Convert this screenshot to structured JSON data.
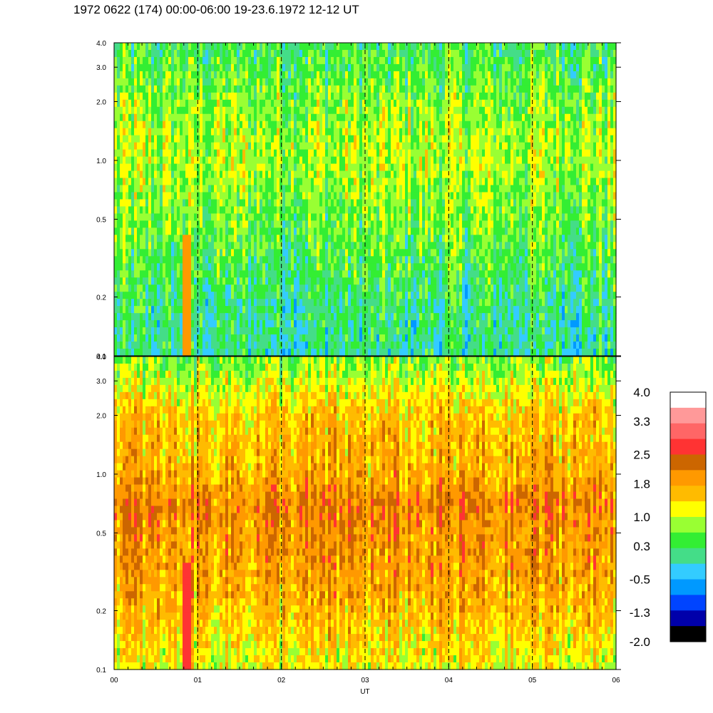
{
  "title": "1972 0622 (174) 00:00-06:00 19-23.6.1972  12-12 UT",
  "chart_data": [
    {
      "type": "heatmap",
      "panel": "top",
      "y_scale": "log",
      "ylim": [
        0.1,
        4.0
      ],
      "y_ticks": [
        "0.1",
        "0.2",
        "0.5",
        "1.0",
        "2.0",
        "3.0",
        "4.0"
      ],
      "y_tick_values": [
        0.1,
        0.2,
        0.5,
        1.0,
        2.0,
        3.0,
        4.0
      ],
      "xlim": [
        0,
        6
      ],
      "dashed_hour_lines": [
        1,
        2,
        3,
        4,
        5
      ],
      "dominant_levels": "0.3 to 1.0 (green–yellow), higher near 0.8–1.0 and 0.3–0.5",
      "profile": [
        {
          "y": 0.1,
          "level": 0.0
        },
        {
          "y": 0.2,
          "level": 0.2
        },
        {
          "y": 0.3,
          "level": 0.4
        },
        {
          "y": 0.5,
          "level": 0.6
        },
        {
          "y": 1.0,
          "level": 0.9
        },
        {
          "y": 2.0,
          "level": 0.7
        },
        {
          "y": 4.0,
          "level": 0.3
        }
      ],
      "events": [
        {
          "x": 0.88,
          "y_from": 0.1,
          "y_to": 0.4,
          "level": 2.0
        }
      ]
    },
    {
      "type": "heatmap",
      "panel": "bottom",
      "y_scale": "log",
      "ylim": [
        0.1,
        4.0
      ],
      "y_ticks": [
        "0.1",
        "0.2",
        "0.5",
        "1.0",
        "2.0",
        "3.0",
        "4.0"
      ],
      "y_tick_values": [
        0.1,
        0.2,
        0.5,
        1.0,
        2.0,
        3.0,
        4.0
      ],
      "xlim": [
        0,
        6
      ],
      "x_ticks": [
        "00",
        "01",
        "02",
        "03",
        "04",
        "05",
        "06"
      ],
      "xlabel": "UT",
      "dashed_hour_lines": [
        1,
        2,
        3,
        4,
        5
      ],
      "dominant_levels": "1.0 to 2.2 (yellow–orange), up to 2.5 near 0.5–0.8",
      "profile": [
        {
          "y": 0.1,
          "level": 1.1
        },
        {
          "y": 0.2,
          "level": 1.6
        },
        {
          "y": 0.3,
          "level": 1.8
        },
        {
          "y": 0.5,
          "level": 1.9
        },
        {
          "y": 0.7,
          "level": 2.1
        },
        {
          "y": 1.0,
          "level": 1.7
        },
        {
          "y": 2.0,
          "level": 1.5
        },
        {
          "y": 4.0,
          "level": 0.6
        }
      ],
      "events": [
        {
          "x": 0.88,
          "y_from": 0.1,
          "y_to": 0.35,
          "level": 2.7
        }
      ]
    }
  ],
  "colorbar": {
    "labels": [
      "4.0",
      "3.3",
      "2.5",
      "1.8",
      "1.0",
      "0.3",
      "-0.5",
      "-1.3",
      "-2.0"
    ],
    "label_values": [
      4.0,
      3.3,
      2.5,
      1.8,
      1.0,
      0.3,
      -0.5,
      -1.3,
      -2.0
    ],
    "colors_top_to_bottom": [
      "#ffffff",
      "#ff9999",
      "#ff6666",
      "#ff3333",
      "#cc6600",
      "#ff9900",
      "#ffbb00",
      "#ffff00",
      "#99ff33",
      "#33ee33",
      "#44dd88",
      "#33ccff",
      "#0099ff",
      "#0044ff",
      "#0000aa",
      "#000000"
    ]
  }
}
